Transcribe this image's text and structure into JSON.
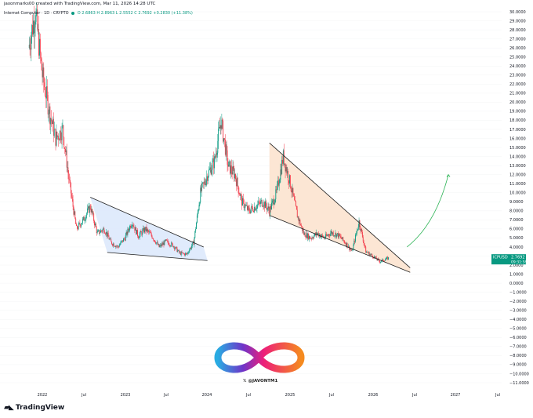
{
  "header": {
    "caption": "jaxonmarks00 created with TradingView.com, Mar 11, 2026 14:28 UTC",
    "legend_symbol": "Internet Computer · 1D · CRYPTO",
    "legend_ohlc": "O 2.6863  H 2.8963  L 2.5552  C 2.7692  +0.2830 (+11.38%)"
  },
  "price_tag": {
    "symbol": "ICPUSD",
    "value": "2.7692",
    "countdown": "09:31:58"
  },
  "watermark": {
    "handle": "@JAVONTM1"
  },
  "footer": {
    "brand": "TradingView"
  },
  "colors": {
    "up": "#089981",
    "down": "#f23645",
    "pattern1_fill": "#dbe7fb",
    "pattern2_fill": "#fbe2cc",
    "projection": "#2fb457",
    "trendline": "#1e1e1e",
    "logo_left": "#6e35c9",
    "logo_right": "#f58a1f"
  },
  "chart_data": {
    "type": "candlestick",
    "symbol": "ICPUSD",
    "x_ticks": [
      "2022",
      "Jul",
      "2023",
      "Jul",
      "2024",
      "Jul",
      "2025",
      "Jul",
      "2026",
      "Jul",
      "2027",
      "Jul"
    ],
    "y_ticks": [
      "30.0000",
      "29.0000",
      "28.0000",
      "27.0000",
      "26.0000",
      "25.0000",
      "24.0000",
      "23.0000",
      "22.0000",
      "21.0000",
      "20.0000",
      "19.0000",
      "18.0000",
      "17.0000",
      "16.0000",
      "15.0000",
      "14.0000",
      "13.0000",
      "12.0000",
      "11.0000",
      "10.0000",
      "9.0000",
      "8.0000",
      "7.0000",
      "6.0000",
      "5.0000",
      "4.0000",
      "3.0000",
      "2.0000",
      "1.0000",
      "0.0000",
      "−1.0000",
      "−2.0000",
      "−3.0000",
      "−4.0000",
      "−5.0000",
      "−6.0000",
      "−7.0000",
      "−8.0000",
      "−9.0000",
      "−10.0000",
      "−11.0000"
    ],
    "y_range": [
      -11.5,
      30.5
    ],
    "x_range": [
      "2021-11-01",
      "2027-11-01"
    ],
    "last_close": 2.7692,
    "close_path": [
      [
        "2021-11-01",
        26.0
      ],
      [
        "2021-12-01",
        30.0
      ],
      [
        "2022-01-01",
        23.0
      ],
      [
        "2022-02-01",
        19.0
      ],
      [
        "2022-03-01",
        16.0
      ],
      [
        "2022-04-01",
        17.0
      ],
      [
        "2022-05-01",
        11.0
      ],
      [
        "2022-06-01",
        6.0
      ],
      [
        "2022-07-01",
        7.0
      ],
      [
        "2022-08-01",
        8.5
      ],
      [
        "2022-09-01",
        5.5
      ],
      [
        "2022-10-01",
        6.0
      ],
      [
        "2022-11-01",
        4.5
      ],
      [
        "2022-12-01",
        4.0
      ],
      [
        "2023-01-01",
        5.0
      ],
      [
        "2023-02-01",
        6.8
      ],
      [
        "2023-03-01",
        5.2
      ],
      [
        "2023-04-01",
        6.0
      ],
      [
        "2023-05-01",
        5.2
      ],
      [
        "2023-06-01",
        4.0
      ],
      [
        "2023-07-01",
        4.6
      ],
      [
        "2023-08-01",
        4.2
      ],
      [
        "2023-09-01",
        3.3
      ],
      [
        "2023-10-01",
        3.2
      ],
      [
        "2023-11-01",
        4.5
      ],
      [
        "2023-12-01",
        10.0
      ],
      [
        "2024-01-01",
        12.0
      ],
      [
        "2024-02-01",
        13.5
      ],
      [
        "2024-03-01",
        18.0
      ],
      [
        "2024-04-01",
        13.0
      ],
      [
        "2024-05-01",
        12.0
      ],
      [
        "2024-06-01",
        9.0
      ],
      [
        "2024-07-01",
        8.0
      ],
      [
        "2024-08-01",
        8.5
      ],
      [
        "2024-09-01",
        9.0
      ],
      [
        "2024-10-01",
        8.0
      ],
      [
        "2024-11-01",
        10.0
      ],
      [
        "2024-12-01",
        14.0
      ],
      [
        "2025-01-01",
        11.0
      ],
      [
        "2025-02-01",
        7.5
      ],
      [
        "2025-03-01",
        5.5
      ],
      [
        "2025-04-01",
        5.0
      ],
      [
        "2025-05-01",
        5.5
      ],
      [
        "2025-06-01",
        5.0
      ],
      [
        "2025-07-01",
        5.6
      ],
      [
        "2025-08-01",
        5.3
      ],
      [
        "2025-09-01",
        4.5
      ],
      [
        "2025-10-01",
        3.5
      ],
      [
        "2025-11-01",
        6.8
      ],
      [
        "2025-12-01",
        3.5
      ],
      [
        "2026-01-01",
        3.0
      ],
      [
        "2026-02-01",
        2.4
      ],
      [
        "2026-03-11",
        2.77
      ]
    ],
    "patterns": [
      {
        "name": "falling wedge 1",
        "upper": [
          [
            "2022-08-01",
            9.5
          ],
          [
            "2023-12-15",
            4.0
          ]
        ],
        "lower": [
          [
            "2022-10-15",
            3.4
          ],
          [
            "2024-01-01",
            2.5
          ]
        ]
      },
      {
        "name": "falling wedge 2",
        "upper": [
          [
            "2024-10-01",
            15.5
          ],
          [
            "2026-06-15",
            1.7
          ]
        ],
        "lower": [
          [
            "2024-10-01",
            7.5
          ],
          [
            "2026-06-15",
            1.2
          ]
        ]
      }
    ],
    "projection": [
      [
        "2026-06-01",
        4.0
      ],
      [
        "2026-09-01",
        6.5
      ],
      [
        "2026-12-01",
        12.0
      ]
    ]
  }
}
